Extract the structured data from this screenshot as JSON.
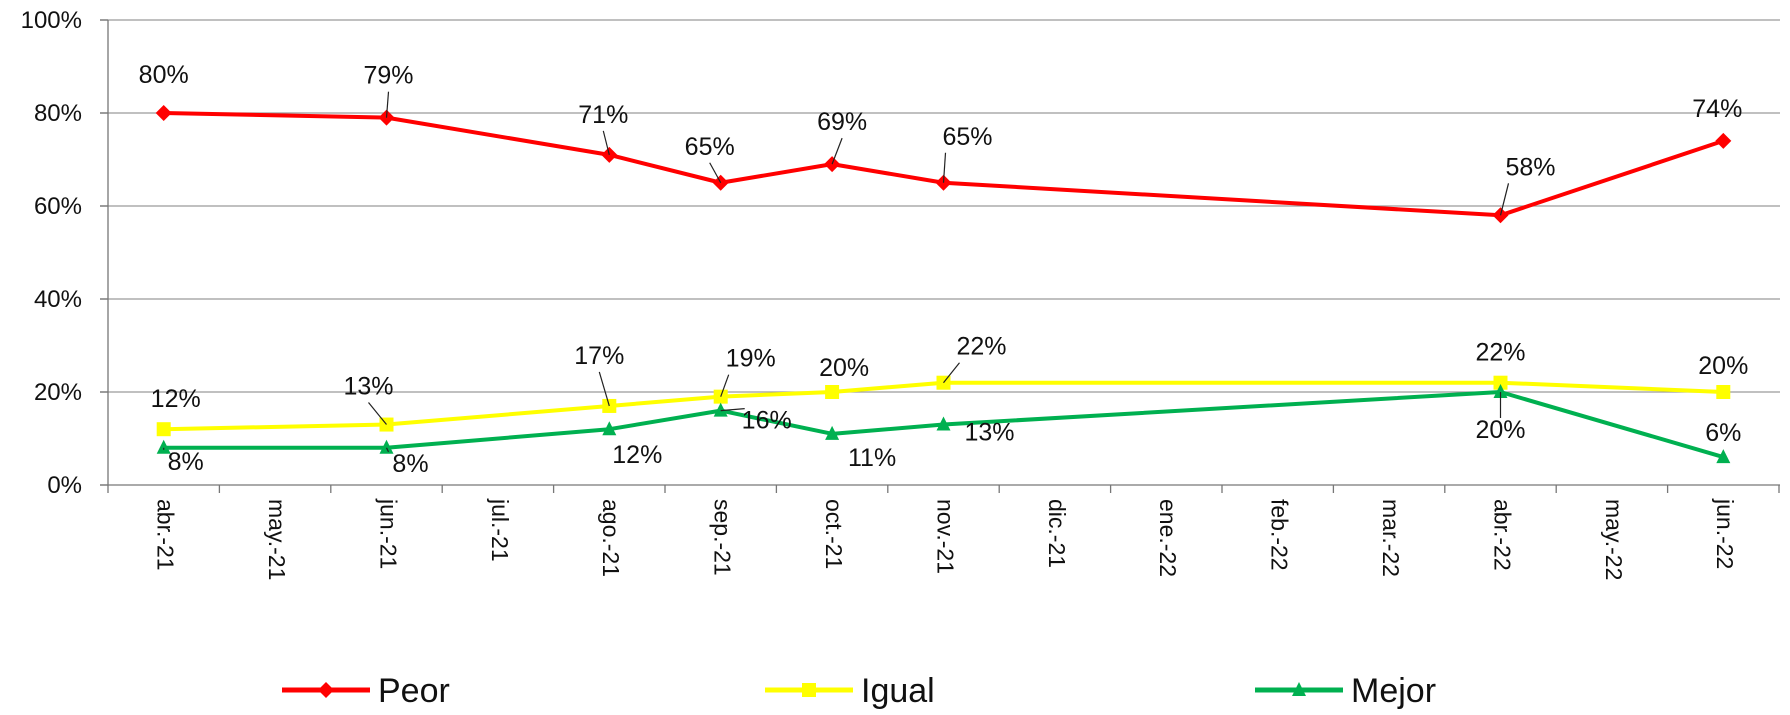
{
  "chart_data": {
    "type": "line",
    "title": "",
    "xlabel": "",
    "ylabel": "",
    "categories": [
      "abr.-21",
      "may.-21",
      "jun.-21",
      "jul.-21",
      "ago.-21",
      "sep.-21",
      "oct.-21",
      "nov.-21",
      "dic.-21",
      "ene.-22",
      "feb.-22",
      "mar.-22",
      "abr.-22",
      "may.-22",
      "jun.-22"
    ],
    "y_ticks": [
      "0%",
      "20%",
      "40%",
      "60%",
      "80%",
      "100%"
    ],
    "ylim": [
      0,
      100
    ],
    "grid": true,
    "legend_position": "bottom",
    "series": [
      {
        "name": "Peor",
        "color": "#ff0000",
        "marker": "diamond",
        "points": [
          {
            "category": "abr.-21",
            "value": 80,
            "label": "80%"
          },
          {
            "category": "jun.-21",
            "value": 79,
            "label": "79%"
          },
          {
            "category": "ago.-21",
            "value": 71,
            "label": "71%"
          },
          {
            "category": "sep.-21",
            "value": 65,
            "label": "65%"
          },
          {
            "category": "oct.-21",
            "value": 69,
            "label": "69%"
          },
          {
            "category": "nov.-21",
            "value": 65,
            "label": "65%"
          },
          {
            "category": "abr.-22",
            "value": 58,
            "label": "58%"
          },
          {
            "category": "jun.-22",
            "value": 74,
            "label": "74%"
          }
        ]
      },
      {
        "name": "Igual",
        "color": "#ffff00",
        "marker": "square",
        "points": [
          {
            "category": "abr.-21",
            "value": 12,
            "label": "12%"
          },
          {
            "category": "jun.-21",
            "value": 13,
            "label": "13%"
          },
          {
            "category": "ago.-21",
            "value": 17,
            "label": "17%"
          },
          {
            "category": "sep.-21",
            "value": 19,
            "label": "19%"
          },
          {
            "category": "oct.-21",
            "value": 20,
            "label": "20%"
          },
          {
            "category": "nov.-21",
            "value": 22,
            "label": "22%"
          },
          {
            "category": "abr.-22",
            "value": 22,
            "label": "22%"
          },
          {
            "category": "jun.-22",
            "value": 20,
            "label": "20%"
          }
        ]
      },
      {
        "name": "Mejor",
        "color": "#00b050",
        "marker": "triangle",
        "points": [
          {
            "category": "abr.-21",
            "value": 8,
            "label": "8%"
          },
          {
            "category": "jun.-21",
            "value": 8,
            "label": "8%"
          },
          {
            "category": "ago.-21",
            "value": 12,
            "label": "12%"
          },
          {
            "category": "sep.-21",
            "value": 16,
            "label": "16%"
          },
          {
            "category": "oct.-21",
            "value": 11,
            "label": "11%"
          },
          {
            "category": "nov.-21",
            "value": 13,
            "label": "13%"
          },
          {
            "category": "abr.-22",
            "value": 20,
            "label": "20%"
          },
          {
            "category": "jun.-22",
            "value": 6,
            "label": "6%"
          }
        ]
      }
    ]
  }
}
